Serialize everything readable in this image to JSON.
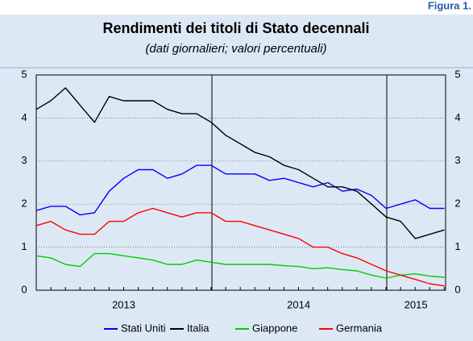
{
  "figure_label": "Figura 1.",
  "chart_data": {
    "type": "line",
    "title": "Rendimenti dei titoli di Stato decennali",
    "subtitle": "(dati giornalieri; valori percentuali)",
    "x": [
      2013,
      2013.083,
      2013.167,
      2013.25,
      2013.333,
      2013.417,
      2013.5,
      2013.583,
      2013.667,
      2013.75,
      2013.833,
      2013.917,
      2014,
      2014.083,
      2014.167,
      2014.25,
      2014.333,
      2014.417,
      2014.5,
      2014.583,
      2014.667,
      2014.75,
      2014.833,
      2014.917,
      2015,
      2015.083,
      2015.167,
      2015.25,
      2015.333
    ],
    "series": [
      {
        "name": "Stati Uniti",
        "color": "#0000ff",
        "values": [
          1.85,
          1.95,
          1.95,
          1.75,
          1.8,
          2.3,
          2.6,
          2.8,
          2.8,
          2.6,
          2.7,
          2.9,
          2.9,
          2.7,
          2.7,
          2.7,
          2.55,
          2.6,
          2.5,
          2.4,
          2.5,
          2.3,
          2.35,
          2.2,
          1.9,
          2.0,
          2.1,
          1.9,
          1.9
        ]
      },
      {
        "name": "Italia",
        "color": "#000000",
        "values": [
          4.2,
          4.4,
          4.7,
          4.3,
          3.9,
          4.5,
          4.4,
          4.4,
          4.4,
          4.2,
          4.1,
          4.1,
          3.9,
          3.6,
          3.4,
          3.2,
          3.1,
          2.9,
          2.8,
          2.6,
          2.4,
          2.4,
          2.3,
          2.0,
          1.7,
          1.6,
          1.2,
          1.3,
          1.4
        ]
      },
      {
        "name": "Giappone",
        "color": "#00cc00",
        "values": [
          0.8,
          0.75,
          0.6,
          0.55,
          0.85,
          0.85,
          0.8,
          0.75,
          0.7,
          0.6,
          0.6,
          0.7,
          0.65,
          0.6,
          0.6,
          0.6,
          0.6,
          0.57,
          0.55,
          0.5,
          0.52,
          0.48,
          0.45,
          0.35,
          0.28,
          0.35,
          0.38,
          0.33,
          0.3
        ]
      },
      {
        "name": "Germania",
        "color": "#ff0000",
        "values": [
          1.5,
          1.6,
          1.4,
          1.3,
          1.3,
          1.6,
          1.6,
          1.8,
          1.9,
          1.8,
          1.7,
          1.8,
          1.8,
          1.6,
          1.6,
          1.5,
          1.4,
          1.3,
          1.2,
          1.0,
          1.0,
          0.85,
          0.75,
          0.6,
          0.45,
          0.35,
          0.25,
          0.15,
          0.1
        ]
      }
    ],
    "xlim": [
      2013,
      2015.34
    ],
    "xticks": [
      {
        "value": 2013.5,
        "label": "2013"
      },
      {
        "value": 2014.5,
        "label": "2014"
      },
      {
        "value": 2015.17,
        "label": "2015"
      }
    ],
    "ylim": [
      0,
      5
    ],
    "yticks": [
      0,
      1,
      2,
      3,
      4,
      5
    ],
    "grid": true,
    "legend": "bottom"
  }
}
